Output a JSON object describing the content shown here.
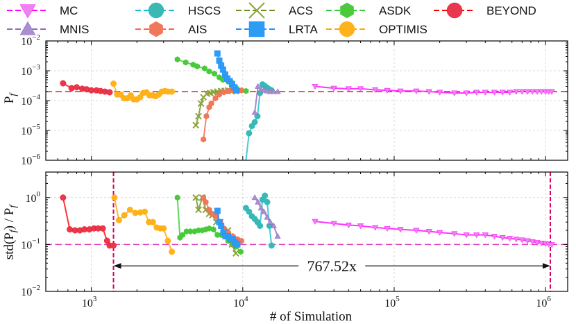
{
  "chart_data": {
    "type": "line",
    "xlabel": "# of Simulation",
    "xscale": "log",
    "xlim": [
      500,
      1400000
    ],
    "x_tick_labels": [
      "10",
      "10",
      "10",
      "10"
    ],
    "x_tick_exponents": [
      "3",
      "4",
      "5",
      "6"
    ],
    "legend": {
      "placement": "top",
      "entries": [
        {
          "key": "MC",
          "label": "MC"
        },
        {
          "key": "MNIS",
          "label": "MNIS"
        },
        {
          "key": "HSCS",
          "label": "HSCS"
        },
        {
          "key": "AIS",
          "label": "AIS"
        },
        {
          "key": "ACS",
          "label": "ACS"
        },
        {
          "key": "LRTA",
          "label": "LRTA"
        },
        {
          "key": "ASDK",
          "label": "ASDK"
        },
        {
          "key": "OPTIMIS",
          "label": "OPTIMIS"
        },
        {
          "key": "BEYOND",
          "label": "BEYOND"
        }
      ]
    },
    "styles": {
      "MC": {
        "color": "#ff00ff",
        "marker": "triangle-down",
        "marker_color": "#ee82ee"
      },
      "MNIS": {
        "color": "#9467bd",
        "marker": "triangle-up",
        "marker_color": "#a98fd0"
      },
      "HSCS": {
        "color": "#17becf",
        "marker": "circle",
        "marker_color": "#3cb8b2"
      },
      "AIS": {
        "color": "#ff6347",
        "marker": "hexagon",
        "marker_color": "#f0785a"
      },
      "ACS": {
        "color": "#6b8e23",
        "marker": "x",
        "marker_color": "#8ea33a"
      },
      "LRTA": {
        "color": "#1e90ff",
        "marker": "square",
        "marker_color": "#2d9cf5"
      },
      "ASDK": {
        "color": "#32cd32",
        "marker": "hexagon",
        "marker_color": "#4cc93a"
      },
      "OPTIMIS": {
        "color": "#ffa500",
        "marker": "circle",
        "marker_color": "#ffb31a"
      },
      "BEYOND": {
        "color": "#ff0000",
        "marker": "circle",
        "marker_color": "#e8384f"
      }
    },
    "panels": [
      {
        "ylabel": "Pf",
        "ylabel_main": "P",
        "ylabel_sub": "f",
        "ylim": [
          1e-06,
          0.01
        ],
        "y_tick_labels": [
          "10",
          "10",
          "10",
          "10",
          "10"
        ],
        "y_tick_exponents": [
          "−6",
          "−5",
          "−4",
          "−3",
          "−2"
        ],
        "y_tick_values": [
          1e-06,
          1e-05,
          0.0001,
          0.001,
          0.01
        ],
        "reference_line": 0.0002,
        "series": {
          "BEYOND": {
            "x": [
              650,
              740,
              800,
              870,
              930,
              1000,
              1080,
              1150,
              1230,
              1320
            ],
            "y": [
              0.00038,
              0.00026,
              0.00028,
              0.00025,
              0.00024,
              0.00022,
              0.00022,
              0.00021,
              0.0002,
              0.00019
            ]
          },
          "OPTIMIS": {
            "x": [
              1400,
              1480,
              1560,
              1640,
              1730,
              1820,
              1900,
              2000,
              2100,
              2200,
              2310,
              2420,
              2540,
              2660,
              2790,
              2920,
              3060,
              3200,
              3400
            ],
            "y": [
              0.00037,
              0.00016,
              0.00016,
              0.00012,
              0.00012,
              0.00015,
              0.00011,
              0.00011,
              0.00013,
              0.00018,
              0.00019,
              0.00015,
              0.00015,
              0.00014,
              0.00016,
              0.0002,
              0.00021,
              0.0002,
              0.0002
            ]
          },
          "ASDK": {
            "x": [
              3700,
              4200,
              4700,
              5000,
              5600,
              6000,
              6500,
              7000,
              7400,
              8000,
              8500,
              9000,
              9800,
              10500
            ],
            "y": [
              0.0024,
              0.0019,
              0.0016,
              0.0014,
              0.0012,
              0.00095,
              0.0008,
              0.0006,
              0.0005,
              0.00044,
              0.0004,
              0.00027,
              0.00022,
              0.00021
            ]
          },
          "ACS": {
            "x": [
              4900,
              5100,
              5300,
              5500,
              5800,
              6100,
              6400,
              6800,
              7200,
              7600,
              8000,
              8500,
              9000
            ],
            "y": [
              1.5e-05,
              3e-05,
              8e-05,
              0.00013,
              0.00017,
              0.00018,
              0.00019,
              0.0002,
              0.00021,
              0.00021,
              0.00022,
              0.00021,
              0.00021
            ]
          },
          "AIS": {
            "x": [
              5500,
              5750,
              6000,
              6200,
              6600,
              7000,
              7500,
              8000,
              8600,
              9200,
              9800
            ],
            "y": [
              5e-06,
              3e-05,
              6e-05,
              8e-05,
              0.00012,
              0.00016,
              0.00019,
              0.00021,
              0.00022,
              0.00022,
              0.00022
            ]
          },
          "LRTA": {
            "x": [
              6800,
              7000,
              7200,
              7400,
              7650,
              7900,
              8200,
              8500,
              8800,
              9100
            ],
            "y": [
              0.0038,
              0.0022,
              0.0015,
              0.0011,
              0.00075,
              0.00055,
              0.00045,
              0.00035,
              0.00028,
              0.00022
            ]
          },
          "HSCS": {
            "x": [
              10500,
              11000,
              11500,
              12000,
              12500,
              13000,
              13500,
              14000,
              14500,
              15000,
              15500
            ],
            "y": [
              4e-07,
              8e-06,
              1.4e-05,
              1.9e-05,
              3e-05,
              0.00018,
              0.00035,
              0.00031,
              0.00027,
              0.00024,
              0.00022
            ]
          },
          "MNIS": {
            "x": [
              12000,
              12600,
              13200,
              13800,
              14500,
              15200,
              16000,
              17000
            ],
            "y": [
              4e-05,
              0.0003,
              0.00024,
              0.00022,
              0.00021,
              0.0002,
              0.0002,
              0.0002
            ]
          },
          "MC": {
            "x": [
              30000,
              40000,
              50000,
              60000,
              75000,
              90000,
              110000,
              140000,
              170000,
              200000,
              250000,
              300000,
              350000,
              400000,
              460000,
              520000,
              580000,
              640000,
              700000,
              760000,
              820000,
              880000,
              940000,
              1000000,
              1050000,
              1100000
            ],
            "y": [
              0.0003,
              0.00026,
              0.00025,
              0.00025,
              0.00023,
              0.00022,
              0.00021,
              0.00021,
              0.0002,
              0.00019,
              0.00018,
              0.00018,
              0.00019,
              0.00019,
              0.00019,
              0.00019,
              0.00019,
              0.0002,
              0.0002,
              0.0002,
              0.0002,
              0.0002,
              0.0002,
              0.0002,
              0.0002,
              0.0002
            ]
          }
        }
      },
      {
        "ylabel": "std(Pf) / Pf",
        "ylabel_parts": [
          "std(P",
          "f",
          ") / P",
          "f"
        ],
        "ylim": [
          0.01,
          3.5
        ],
        "y_tick_labels": [
          "10",
          "10",
          "10"
        ],
        "y_tick_exponents": [
          "−2",
          "−1",
          "0"
        ],
        "y_tick_values": [
          0.01,
          0.1,
          1
        ],
        "reference_line": 0.1,
        "vertical_lines": [
          1400,
          1075000
        ],
        "annotation": {
          "text": "767.52x",
          "from": 1400,
          "to": 1075000,
          "y": 0.035
        },
        "series": {
          "BEYOND": {
            "x": [
              650,
              720,
              780,
              840,
              900,
              970,
              1040,
              1110,
              1190,
              1270,
              1320,
              1400
            ],
            "y": [
              1.0,
              0.21,
              0.2,
              0.2,
              0.21,
              0.21,
              0.22,
              0.22,
              0.22,
              0.12,
              0.095,
              0.095
            ]
          },
          "OPTIMIS": {
            "x": [
              1420,
              1520,
              1650,
              1800,
              1950,
              2100,
              2250,
              2400,
              2550,
              2700,
              2850,
              3000,
              3200,
              3400
            ],
            "y": [
              1.0,
              0.33,
              0.42,
              0.55,
              0.47,
              0.48,
              0.5,
              0.3,
              0.3,
              0.23,
              0.22,
              0.22,
              0.12,
              0.07
            ]
          },
          "ASDK": {
            "x": [
              3700,
              3850,
              4000,
              4250,
              4500,
              4800,
              5100,
              5400,
              5700,
              6000,
              6400,
              6800,
              7200,
              7600,
              8000,
              8500,
              9000,
              9700
            ],
            "y": [
              1.0,
              0.14,
              0.16,
              0.19,
              0.19,
              0.19,
              0.2,
              0.2,
              0.21,
              0.22,
              0.21,
              0.16,
              0.16,
              0.15,
              0.12,
              0.1,
              0.09,
              0.07
            ]
          },
          "ACS": {
            "x": [
              4900,
              5100,
              5400,
              5700,
              6000,
              6300,
              6700,
              7100,
              7500,
              8000,
              8500,
              9000
            ],
            "y": [
              1.0,
              0.55,
              1.0,
              0.55,
              0.45,
              0.42,
              0.3,
              0.3,
              0.2,
              0.2,
              0.1,
              0.065
            ]
          },
          "AIS": {
            "x": [
              5500,
              5700,
              6000,
              6300,
              6700,
              7100,
              7500,
              8000,
              8600,
              9200,
              9800
            ],
            "y": [
              1.0,
              0.8,
              0.55,
              0.45,
              0.4,
              0.3,
              0.22,
              0.18,
              0.15,
              0.13,
              0.12
            ]
          },
          "LRTA": {
            "x": [
              6800,
              7000,
              7200,
              7450,
              7700,
              8000,
              8300,
              8600,
              8900,
              9200
            ],
            "y": [
              0.52,
              0.3,
              0.25,
              0.18,
              0.15,
              0.15,
              0.13,
              0.13,
              0.11,
              0.1
            ]
          },
          "HSCS": {
            "x": [
              10500,
              11000,
              11500,
              12000,
              12500,
              13000,
              13500,
              14000,
              14500,
              15000,
              15500
            ],
            "y": [
              0.6,
              0.5,
              0.4,
              0.35,
              0.3,
              0.25,
              0.9,
              1.1,
              0.8,
              0.25,
              0.095
            ]
          },
          "MNIS": {
            "x": [
              12000,
              12600,
              13200,
              13800,
              14500,
              15200,
              16000,
              17000
            ],
            "y": [
              1.0,
              0.8,
              0.6,
              0.5,
              0.38,
              0.3,
              0.25,
              0.15
            ]
          },
          "MC": {
            "x": [
              30000,
              40000,
              50000,
              60000,
              75000,
              90000,
              110000,
              140000,
              170000,
              200000,
              250000,
              300000,
              350000,
              400000,
              460000,
              520000,
              580000,
              640000,
              700000,
              760000,
              820000,
              880000,
              940000,
              1000000,
              1050000,
              1100000
            ],
            "y": [
              0.31,
              0.28,
              0.26,
              0.25,
              0.23,
              0.22,
              0.21,
              0.2,
              0.19,
              0.18,
              0.17,
              0.16,
              0.16,
              0.16,
              0.15,
              0.14,
              0.135,
              0.13,
              0.125,
              0.12,
              0.115,
              0.11,
              0.107,
              0.104,
              0.101,
              0.099
            ]
          }
        }
      }
    ]
  }
}
